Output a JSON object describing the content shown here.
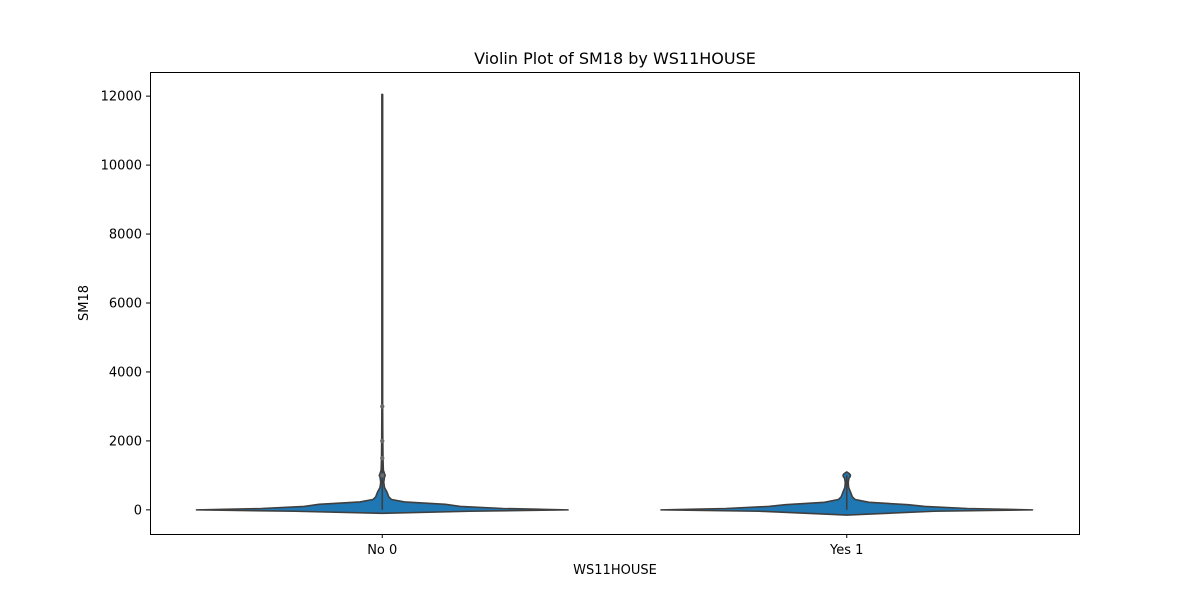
{
  "chart_data": {
    "type": "violin",
    "title": "Violin Plot of SM18 by WS11HOUSE",
    "xlabel": "WS11HOUSE",
    "ylabel": "SM18",
    "categories": [
      "No 0",
      "Yes 1"
    ],
    "ylim": [
      -700,
      12700
    ],
    "yticks": [
      0,
      2000,
      4000,
      6000,
      8000,
      10000,
      12000
    ],
    "grid": false,
    "color": "#1f77b4",
    "edge_color": "#3f3f3f",
    "series": [
      {
        "category": "No 0",
        "max": 12050,
        "outliers": [
          3000,
          2000,
          1500,
          1000
        ],
        "density": [
          [
            -100,
            0.0
          ],
          [
            -40,
            0.47
          ],
          [
            0,
            1.0
          ],
          [
            40,
            0.65
          ],
          [
            100,
            0.42
          ],
          [
            160,
            0.34
          ],
          [
            230,
            0.12
          ],
          [
            300,
            0.05
          ],
          [
            380,
            0.035
          ],
          [
            450,
            0.03
          ],
          [
            520,
            0.025
          ],
          [
            650,
            0.012
          ],
          [
            800,
            0.008
          ],
          [
            950,
            0.012
          ],
          [
            1000,
            0.016
          ],
          [
            1050,
            0.012
          ],
          [
            1150,
            0.006
          ],
          [
            1500,
            0.004
          ],
          [
            2000,
            0.003
          ],
          [
            3000,
            0.002
          ],
          [
            6000,
            0.002
          ],
          [
            9000,
            0.002
          ],
          [
            12050,
            0.002
          ]
        ]
      },
      {
        "category": "Yes 1",
        "max": 1000,
        "outliers": [],
        "density": [
          [
            -150,
            0.0
          ],
          [
            -40,
            0.47
          ],
          [
            0,
            1.0
          ],
          [
            40,
            0.65
          ],
          [
            100,
            0.42
          ],
          [
            150,
            0.33
          ],
          [
            220,
            0.12
          ],
          [
            300,
            0.045
          ],
          [
            380,
            0.03
          ],
          [
            450,
            0.025
          ],
          [
            520,
            0.02
          ],
          [
            650,
            0.01
          ],
          [
            800,
            0.008
          ],
          [
            920,
            0.012
          ],
          [
            960,
            0.018
          ],
          [
            1000,
            0.02
          ],
          [
            1040,
            0.016
          ],
          [
            1080,
            0.006
          ],
          [
            1100,
            0.0
          ]
        ]
      }
    ]
  }
}
